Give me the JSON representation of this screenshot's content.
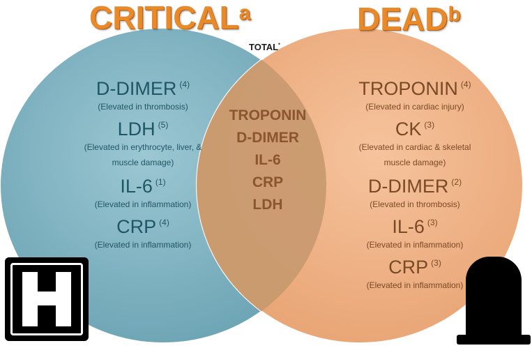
{
  "headings": {
    "critical": "CRITICAL",
    "critical_sup": "a",
    "dead": "DEAD",
    "dead_sup": "b",
    "total": "TOTAL",
    "total_sup": "*"
  },
  "colors": {
    "critical_circle": "#7fb3c2",
    "dead_circle": "#f0b085",
    "overlap": "#c89a6e",
    "heading_orange": "#e8892a"
  },
  "critical_only": [
    {
      "name": "D-DIMER",
      "count": "(4)",
      "notes": [
        "(Elevated in thrombosis)"
      ]
    },
    {
      "name": "LDH",
      "count": "(5)",
      "notes": [
        "(Elevated in erythrocyte, liver, &",
        "muscle damage)"
      ]
    },
    {
      "name": "IL-6",
      "count": "(1)",
      "notes": [
        "(Elevated in inflammation)"
      ]
    },
    {
      "name": "CRP",
      "count": "(4)",
      "notes": [
        "(Elevated in inflammation)"
      ]
    }
  ],
  "dead_only": [
    {
      "name": "TROPONIN",
      "count": "(4)",
      "notes": [
        "(Elevated in cardiac injury)"
      ]
    },
    {
      "name": "CK",
      "count": "(3)",
      "notes": [
        "(Elevated in cardiac & skeletal",
        "muscle damage)"
      ]
    },
    {
      "name": "D-DIMER",
      "count": "(2)",
      "notes": [
        "(Elevated in thrombosis)"
      ]
    },
    {
      "name": "IL-6",
      "count": "(3)",
      "notes": [
        "(Elevated in inflammation)"
      ]
    },
    {
      "name": "CRP",
      "count": "(3)",
      "notes": [
        "(Elevated in inflammation)"
      ]
    }
  ],
  "overlap": [
    "TROPONIN",
    "D-DIMER",
    "IL-6",
    "CRP",
    "LDH"
  ],
  "icons": {
    "hospital": "hospital-icon",
    "tombstone": "tombstone-icon"
  }
}
